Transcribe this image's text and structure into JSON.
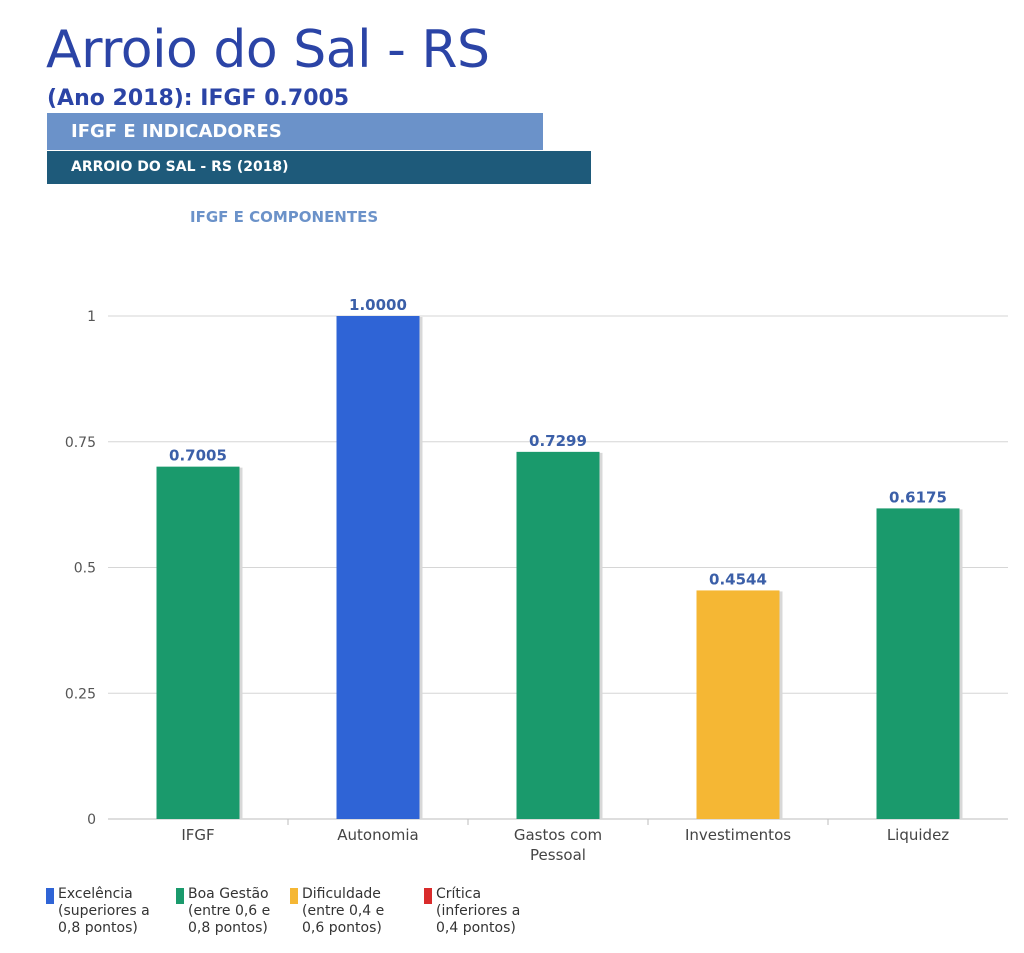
{
  "header": {
    "title": "Arroio do Sal - RS",
    "subtitle": "(Ano 2018): IFGF  0.7005",
    "band1": "IFGF E INDICADORES",
    "band2": "ARROIO DO SAL - RS (2018)"
  },
  "chart_data": {
    "type": "bar",
    "title": "IFGF E COMPONENTES",
    "categories": [
      "IFGF",
      "Autonomia",
      "Gastos com\nPessoal",
      "Investimentos",
      "Liquidez"
    ],
    "values": [
      0.7005,
      1.0,
      0.7299,
      0.4544,
      0.6175
    ],
    "value_labels": [
      "0.7005",
      "1.0000",
      "0.7299",
      "0.4544",
      "0.6175"
    ],
    "bar_colors": [
      "#1a9a6c",
      "#2f64d6",
      "#1a9a6c",
      "#f5b734",
      "#1a9a6c"
    ],
    "ylim": [
      0,
      1
    ],
    "yticks": [
      0,
      0.25,
      0.5,
      0.75,
      1
    ],
    "ytick_labels": [
      "0",
      "0.25",
      "0.5",
      "0.75",
      "1"
    ],
    "xlabel": "",
    "ylabel": "",
    "grid": true,
    "legend": [
      {
        "label": "Excelência\n(superiores a\n0,8 pontos)",
        "color": "#2f64d6"
      },
      {
        "label": "Boa Gestão\n(entre 0,6 e\n0,8 pontos)",
        "color": "#1a9a6c"
      },
      {
        "label": "Dificuldade\n(entre 0,4 e\n0,6 pontos)",
        "color": "#f5b734"
      },
      {
        "label": "Crítica\n(inferiores a\n0,4 pontos)",
        "color": "#d92b2b"
      }
    ]
  }
}
